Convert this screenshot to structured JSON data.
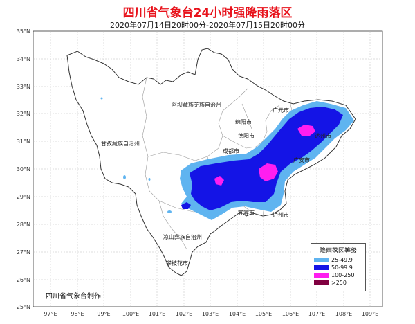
{
  "title": "四川省气象台24小时强降雨落区",
  "subtitle": "2020年07月14日20时00分-2020年07月15日20时00分",
  "credit": "四川省气象台制作",
  "lat_labels": [
    "35°N",
    "34°N",
    "33°N",
    "32°N",
    "31°N",
    "30°N",
    "29°N",
    "28°N",
    "27°N",
    "26°N",
    "25°N"
  ],
  "lon_labels": [
    "97°E",
    "98°E",
    "99°E",
    "100°E",
    "101°E",
    "102°E",
    "103°E",
    "104°E",
    "105°E",
    "106°E",
    "107°E",
    "108°E",
    "109°E"
  ],
  "regions": {
    "aba": "阿坝藏族羌族自治州",
    "ganzi": "甘孜藏族自治州",
    "liangshan": "凉山彝族自治州"
  },
  "cities": {
    "guangyuan": "广元市",
    "mianyang": "绵阳市",
    "deyang": "德阳市",
    "chengdu": "成都市",
    "dazhou": "达州市",
    "guangan": "广安市",
    "yibin": "宜宾市",
    "luzhou": "泸州市",
    "panzhihua": "攀枝花市"
  },
  "legend": {
    "title": "降雨落区等级",
    "items": [
      {
        "label": "25-49.9",
        "color": "#5fb4f0"
      },
      {
        "label": "50-99.9",
        "color": "#1414e6"
      },
      {
        "label": "100-250",
        "color": "#ff1ef0"
      },
      {
        "label": ">250",
        "color": "#800040"
      }
    ]
  },
  "colors": {
    "rain_25": "#5fb4f0",
    "rain_50": "#1414e6",
    "rain_100": "#ff1ef0",
    "title": "#e8121b"
  }
}
